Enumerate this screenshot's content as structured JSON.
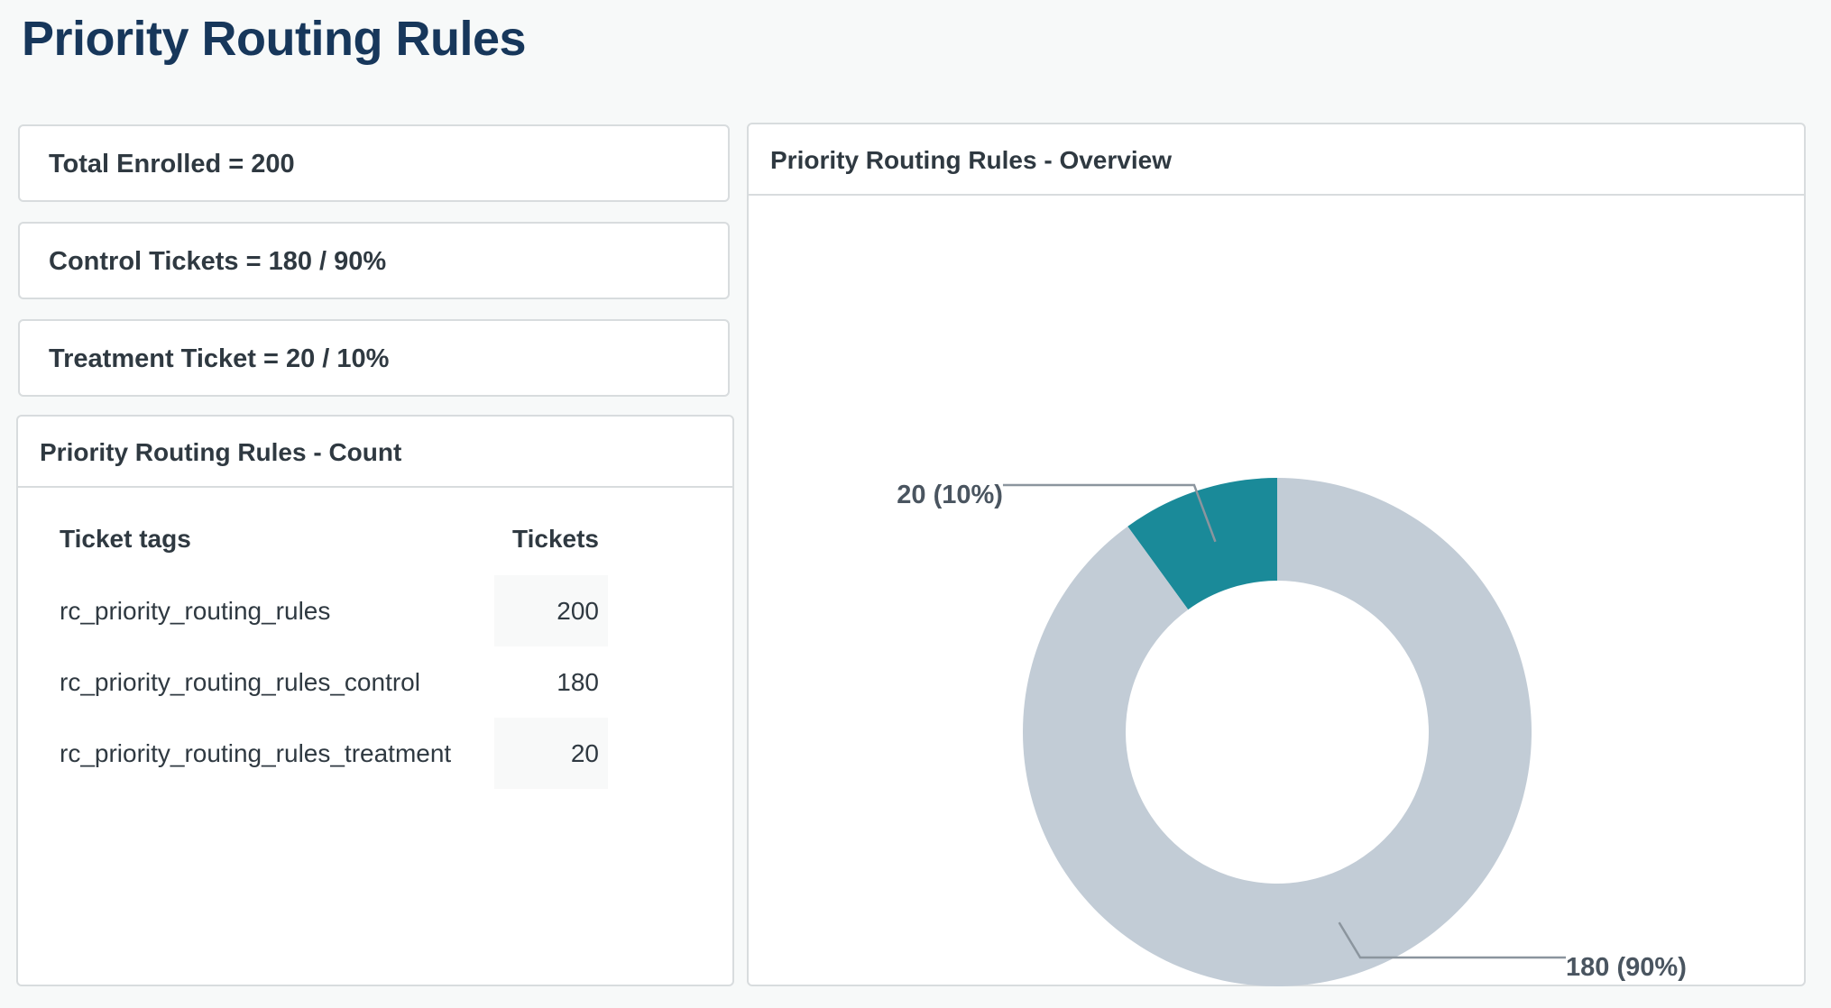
{
  "page": {
    "title": "Priority Routing Rules"
  },
  "stats": [
    {
      "label": "Total Enrolled = 200"
    },
    {
      "label": "Control Tickets = 180 / 90%"
    },
    {
      "label": "Treatment Ticket = 20 / 10%"
    }
  ],
  "count_panel": {
    "title": "Priority Routing Rules - Count",
    "columns": [
      "Ticket tags",
      "Tickets"
    ],
    "rows": [
      {
        "tag": "rc_priority_routing_rules",
        "tickets": "200"
      },
      {
        "tag": "rc_priority_routing_rules_control",
        "tickets": "180"
      },
      {
        "tag": "rc_priority_routing_rules_treatment",
        "tickets": "20"
      }
    ]
  },
  "overview_panel": {
    "title": "Priority Routing Rules - Overview"
  },
  "colors": {
    "treatment": "#1a8a99",
    "control": "#c2ccd6",
    "title": "#17375b"
  },
  "chart_data": {
    "type": "pie",
    "title": "Priority Routing Rules - Overview",
    "donut": true,
    "slices": [
      {
        "value": 20,
        "label": "20 (10%)",
        "color": "#1a8a99"
      },
      {
        "value": 180,
        "label": "180 (90%)",
        "color": "#c2ccd6"
      }
    ]
  }
}
